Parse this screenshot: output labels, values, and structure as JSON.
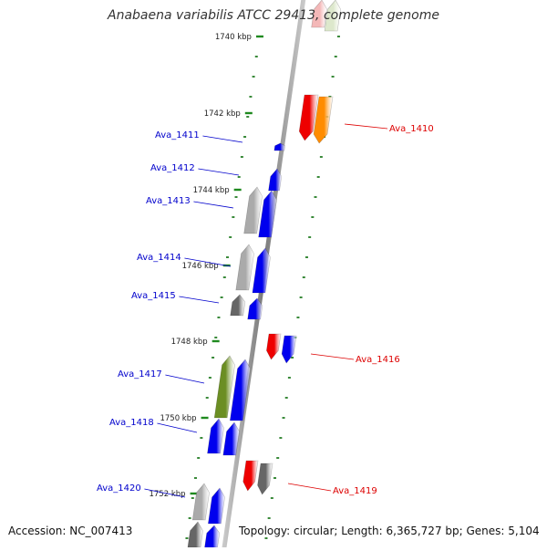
{
  "title": "Anabaena variabilis ATCC 29413, complete genome",
  "footer": {
    "accession": "Accession: NC_007413",
    "summary": "Topology: circular; Length: 6,365,727 bp; Genes: 5,104"
  },
  "colors": {
    "backbone": "#8c8c8c",
    "tick": "#2e8b2e",
    "dot": "#3a8a3a",
    "left_label": "#0000cc",
    "right_label": "#dd0000",
    "blue": "#0000ee",
    "grey": "#aaaaaa",
    "darkgrey": "#666666",
    "olive": "#6b8e23",
    "red": "#ee0000",
    "orange": "#ff8c00",
    "pink": "#f4b8b8",
    "palegreen": "#dde8cc"
  },
  "kbp_ticks": [
    {
      "label": "1740 kbp"
    },
    {
      "label": "1742 kbp"
    },
    {
      "label": "1744 kbp"
    },
    {
      "label": "1746 kbp"
    },
    {
      "label": "1748 kbp"
    },
    {
      "label": "1750 kbp"
    },
    {
      "label": "1752 kbp"
    }
  ],
  "gene_labels": {
    "left": [
      "Ava_1411",
      "Ava_1412",
      "Ava_1413",
      "Ava_1414",
      "Ava_1415",
      "Ava_1417",
      "Ava_1418",
      "Ava_1420"
    ],
    "right": [
      "Ava_1410",
      "Ava_1416",
      "Ava_1419"
    ]
  }
}
